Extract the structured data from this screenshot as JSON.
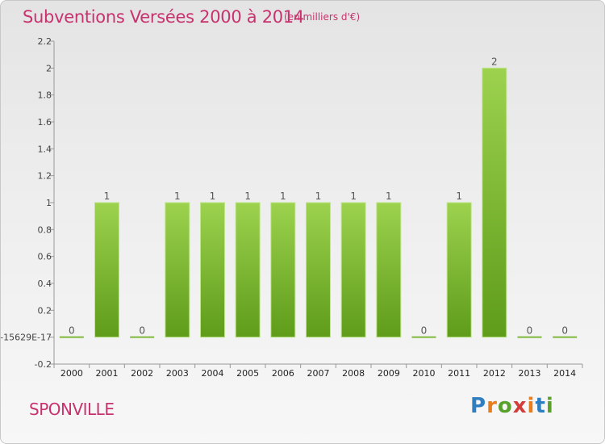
{
  "header": {
    "title": "Subventions Versées 2000 à 2014",
    "unit": "(en milliers d'€)"
  },
  "footer": {
    "commune": "SPONVILLE",
    "logo_letters": [
      "P",
      "r",
      "o",
      "x",
      "i",
      "t",
      "i"
    ],
    "logo_colors": [
      "#2f7fc0",
      "#e87d1e",
      "#5aa02c",
      "#d43c3c",
      "#e87d1e",
      "#2f7fc0",
      "#5aa02c"
    ]
  },
  "colors": {
    "title": "#c8326e",
    "bar_light": "#9cd24e",
    "bar_dark": "#5e9c1a",
    "axis": "#999999"
  },
  "chart_data": {
    "type": "bar",
    "categories": [
      "2000",
      "2001",
      "2002",
      "2003",
      "2004",
      "2005",
      "2006",
      "2007",
      "2008",
      "2009",
      "2010",
      "2011",
      "2012",
      "2013",
      "2014"
    ],
    "values": [
      0,
      1,
      0,
      1,
      1,
      1,
      1,
      1,
      1,
      1,
      0,
      1,
      2,
      0,
      0
    ],
    "data_labels": [
      "0",
      "1",
      "0",
      "1",
      "1",
      "1",
      "1",
      "1",
      "1",
      "1",
      "0",
      "1",
      "2",
      "0",
      "0"
    ],
    "title": "Subventions Versées 2000 à 2014",
    "ylim": [
      -0.2,
      2.2
    ],
    "y_ticks": [
      -0.2,
      0,
      0.2,
      0.4,
      0.6,
      0.8,
      1,
      1.2,
      1.4,
      1.6,
      1.8,
      2,
      2.2
    ],
    "y_tick_labels": [
      "-0.2",
      "-15629E-17",
      "0.2",
      "0.4",
      "0.6",
      "0.8",
      "1",
      "1.2",
      "1.4",
      "1.6",
      "1.8",
      "2",
      "2.2"
    ],
    "grid": false,
    "legend": "none"
  }
}
